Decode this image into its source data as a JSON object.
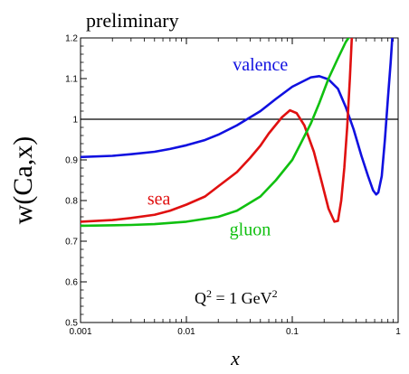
{
  "chart_data": {
    "type": "line",
    "title": "preliminary",
    "xlabel": "x",
    "ylabel": "w(Ca,x)",
    "x_scale": "log",
    "xlim": [
      0.001,
      1
    ],
    "ylim": [
      0.5,
      1.2
    ],
    "grid": false,
    "reference_line": {
      "y": 1.0,
      "color": "#000000"
    },
    "x_ticks": [
      {
        "value": 0.001,
        "label": "0.001"
      },
      {
        "value": 0.01,
        "label": "0.01"
      },
      {
        "value": 0.1,
        "label": "0.1"
      },
      {
        "value": 1,
        "label": "1"
      }
    ],
    "y_ticks": [
      {
        "value": 0.5,
        "label": "0.5"
      },
      {
        "value": 0.6,
        "label": "0.6"
      },
      {
        "value": 0.7,
        "label": "0.7"
      },
      {
        "value": 0.8,
        "label": "0.8"
      },
      {
        "value": 0.9,
        "label": "0.9"
      },
      {
        "value": 1.0,
        "label": "1"
      },
      {
        "value": 1.1,
        "label": "1.1"
      },
      {
        "value": 1.2,
        "label": "1.2"
      }
    ],
    "annotation": {
      "prefix": "Q",
      "superscript": "2",
      "suffix": " = 1 GeV",
      "suffix_superscript": "2"
    },
    "series": [
      {
        "name": "valence",
        "color": "#1010e0",
        "points": [
          [
            0.001,
            0.907
          ],
          [
            0.002,
            0.91
          ],
          [
            0.003,
            0.914
          ],
          [
            0.005,
            0.92
          ],
          [
            0.007,
            0.927
          ],
          [
            0.01,
            0.936
          ],
          [
            0.015,
            0.949
          ],
          [
            0.02,
            0.962
          ],
          [
            0.03,
            0.985
          ],
          [
            0.05,
            1.02
          ],
          [
            0.07,
            1.05
          ],
          [
            0.1,
            1.08
          ],
          [
            0.15,
            1.103
          ],
          [
            0.18,
            1.106
          ],
          [
            0.22,
            1.098
          ],
          [
            0.27,
            1.075
          ],
          [
            0.32,
            1.03
          ],
          [
            0.38,
            0.975
          ],
          [
            0.45,
            0.91
          ],
          [
            0.52,
            0.86
          ],
          [
            0.58,
            0.825
          ],
          [
            0.62,
            0.815
          ],
          [
            0.65,
            0.82
          ],
          [
            0.7,
            0.86
          ],
          [
            0.75,
            0.95
          ],
          [
            0.8,
            1.05
          ],
          [
            0.85,
            1.14
          ],
          [
            0.88,
            1.2
          ]
        ]
      },
      {
        "name": "sea",
        "color": "#e01010",
        "points": [
          [
            0.001,
            0.748
          ],
          [
            0.002,
            0.752
          ],
          [
            0.003,
            0.757
          ],
          [
            0.005,
            0.765
          ],
          [
            0.007,
            0.775
          ],
          [
            0.01,
            0.79
          ],
          [
            0.015,
            0.81
          ],
          [
            0.02,
            0.835
          ],
          [
            0.03,
            0.87
          ],
          [
            0.04,
            0.905
          ],
          [
            0.05,
            0.935
          ],
          [
            0.06,
            0.965
          ],
          [
            0.08,
            1.005
          ],
          [
            0.095,
            1.022
          ],
          [
            0.11,
            1.015
          ],
          [
            0.13,
            0.985
          ],
          [
            0.16,
            0.92
          ],
          [
            0.19,
            0.845
          ],
          [
            0.22,
            0.78
          ],
          [
            0.25,
            0.748
          ],
          [
            0.27,
            0.75
          ],
          [
            0.29,
            0.8
          ],
          [
            0.31,
            0.88
          ],
          [
            0.33,
            0.98
          ],
          [
            0.35,
            1.1
          ],
          [
            0.365,
            1.2
          ]
        ]
      },
      {
        "name": "gluon",
        "color": "#10c010",
        "points": [
          [
            0.001,
            0.738
          ],
          [
            0.003,
            0.74
          ],
          [
            0.005,
            0.742
          ],
          [
            0.01,
            0.748
          ],
          [
            0.02,
            0.76
          ],
          [
            0.03,
            0.775
          ],
          [
            0.05,
            0.81
          ],
          [
            0.07,
            0.85
          ],
          [
            0.1,
            0.9
          ],
          [
            0.12,
            0.94
          ],
          [
            0.15,
            0.99
          ],
          [
            0.18,
            1.04
          ],
          [
            0.22,
            1.1
          ],
          [
            0.27,
            1.15
          ],
          [
            0.32,
            1.19
          ],
          [
            0.34,
            1.2
          ]
        ]
      }
    ],
    "series_labels": [
      {
        "series": "valence",
        "text": "valence",
        "x": 0.05,
        "y": 1.12
      },
      {
        "series": "sea",
        "text": "sea",
        "x": 0.0055,
        "y": 0.79
      },
      {
        "series": "gluon",
        "text": "gluon",
        "x": 0.04,
        "y": 0.715
      }
    ]
  }
}
